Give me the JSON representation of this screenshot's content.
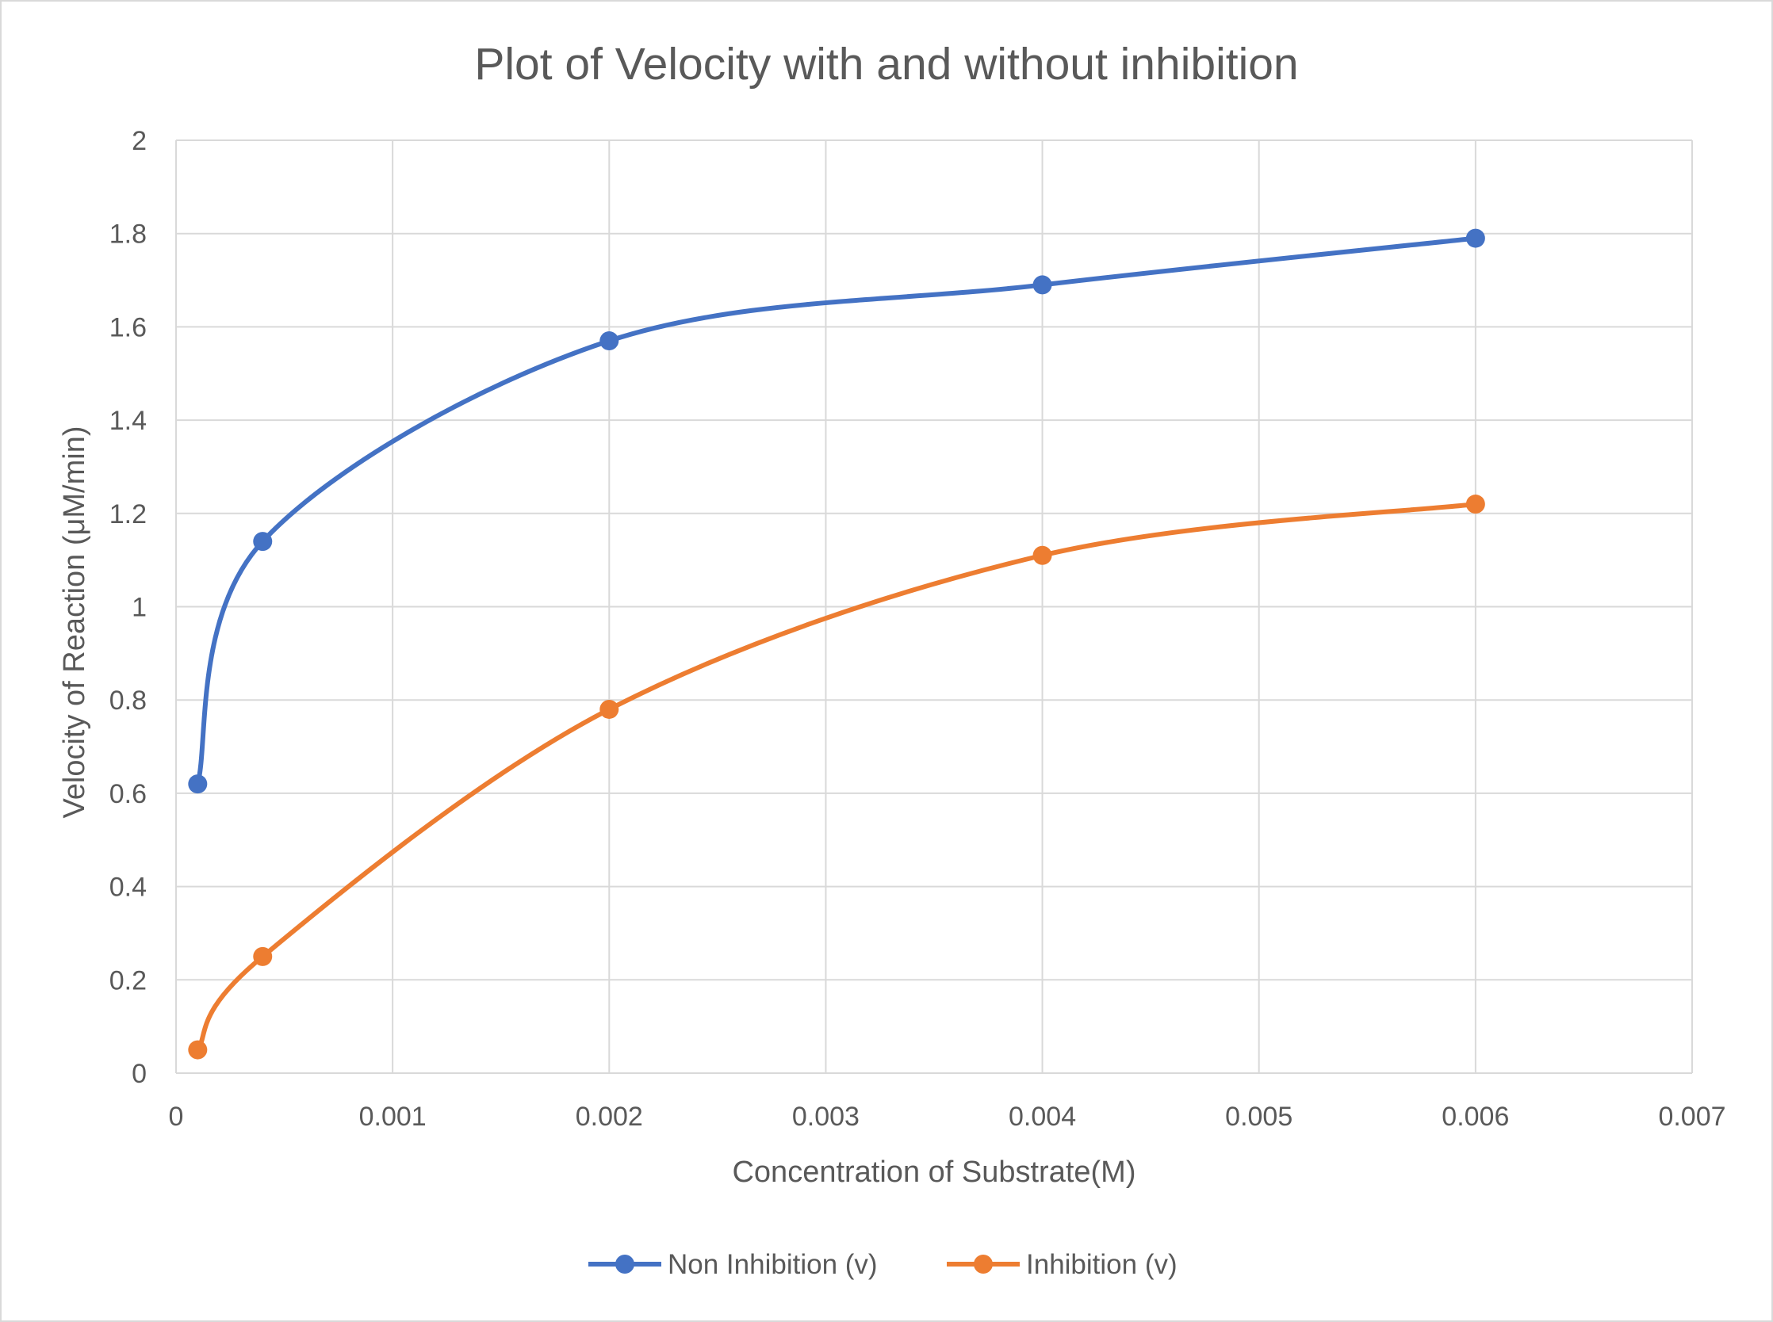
{
  "chart_data": {
    "type": "scatter",
    "title": "Plot of Velocity with and without inhibition",
    "xlabel": "Concentration of Substrate(M)",
    "ylabel": "Velocity of Reaction (μM/min)",
    "xlim": [
      0,
      0.007
    ],
    "ylim": [
      0,
      2
    ],
    "x_ticks": [
      "0",
      "0.001",
      "0.002",
      "0.003",
      "0.004",
      "0.005",
      "0.006",
      "0.007"
    ],
    "y_ticks": [
      "0",
      "0.2",
      "0.4",
      "0.6",
      "0.8",
      "1",
      "1.2",
      "1.4",
      "1.6",
      "1.8",
      "2"
    ],
    "grid": true,
    "smoothed_lines": true,
    "legend_position": "bottom",
    "series": [
      {
        "name": "Non Inhibition (v)",
        "color": "#4472c4",
        "x": [
          0.0001,
          0.0004,
          0.002,
          0.004,
          0.006
        ],
        "y": [
          0.62,
          1.14,
          1.57,
          1.69,
          1.79
        ]
      },
      {
        "name": "Inhibition (v)",
        "color": "#ed7d31",
        "x": [
          0.0001,
          0.0004,
          0.002,
          0.004,
          0.006
        ],
        "y": [
          0.05,
          0.25,
          0.78,
          1.11,
          1.22
        ]
      }
    ]
  }
}
